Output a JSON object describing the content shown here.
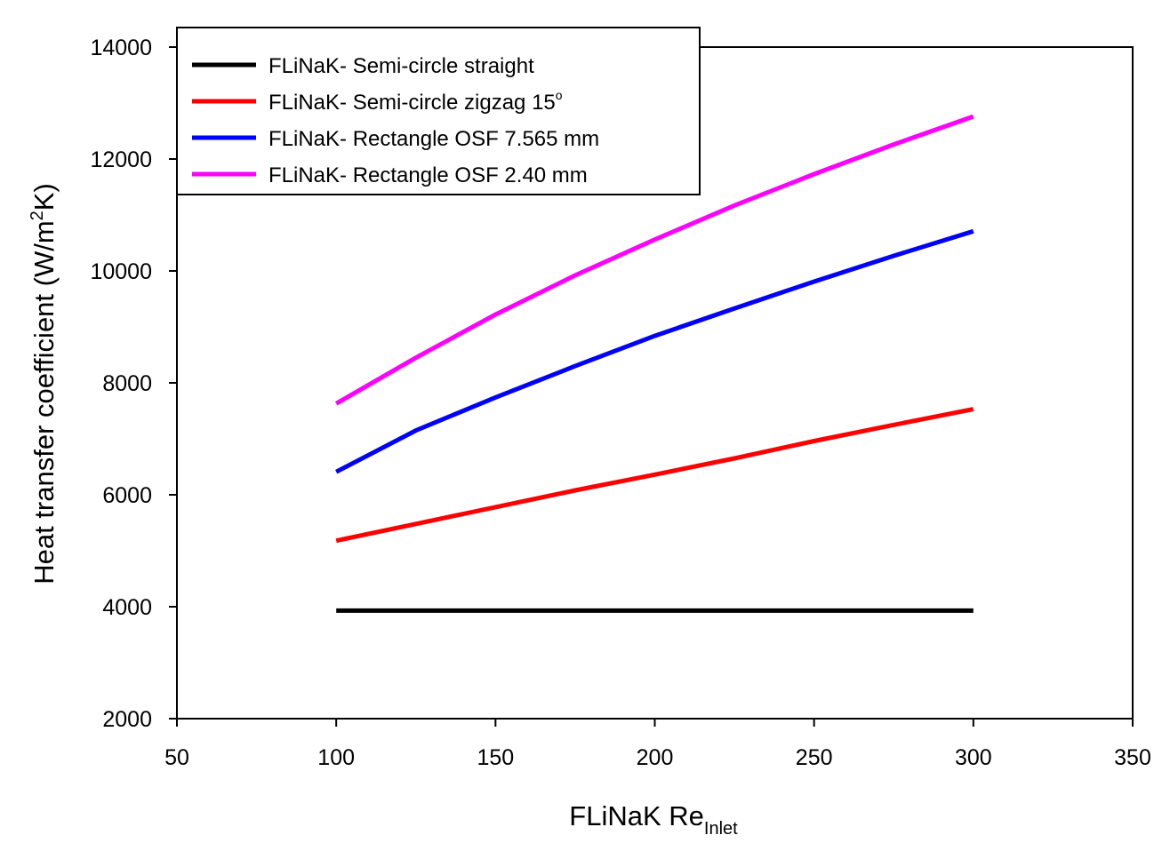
{
  "chart_data": {
    "type": "line",
    "xlabel": {
      "main": "FLiNaK Re",
      "sub": "Inlet"
    },
    "ylabel": {
      "before": "Heat transfer coefficient (W/m",
      "sup": "2",
      "after": "K)"
    },
    "xlim": [
      50,
      350
    ],
    "ylim": [
      2000,
      14000
    ],
    "xticks": [
      "50",
      "100",
      "150",
      "200",
      "250",
      "300",
      "350"
    ],
    "yticks": [
      "2000",
      "4000",
      "6000",
      "8000",
      "10000",
      "12000",
      "14000"
    ],
    "grid": false,
    "legend_position": "top-left",
    "series": [
      {
        "name": "FLiNaK- Semi-circle straight",
        "color": "#000000",
        "x": [
          100,
          125,
          150,
          175,
          200,
          225,
          250,
          275,
          300
        ],
        "values": [
          3930,
          3930,
          3930,
          3930,
          3930,
          3930,
          3930,
          3930,
          3930
        ]
      },
      {
        "name": "FLiNaK- Semi-circle zigzag 15",
        "name_sup": "o",
        "color": "#ff0000",
        "x": [
          100,
          125,
          150,
          175,
          200,
          225,
          250,
          275,
          300
        ],
        "values": [
          5180,
          5480,
          5780,
          6080,
          6360,
          6650,
          6960,
          7250,
          7530
        ]
      },
      {
        "name": "FLiNaK- Rectangle OSF 7.565 mm",
        "color": "#0000ff",
        "x": [
          100,
          125,
          150,
          175,
          200,
          225,
          250,
          275,
          300
        ],
        "values": [
          6410,
          7150,
          7740,
          8300,
          8840,
          9330,
          9810,
          10270,
          10710
        ]
      },
      {
        "name": "FLiNaK- Rectangle OSF 2.40 mm",
        "color": "#ff00ff",
        "x": [
          100,
          125,
          150,
          175,
          200,
          225,
          250,
          275,
          300
        ],
        "values": [
          7630,
          8450,
          9220,
          9920,
          10560,
          11170,
          11730,
          12260,
          12760
        ]
      }
    ]
  }
}
